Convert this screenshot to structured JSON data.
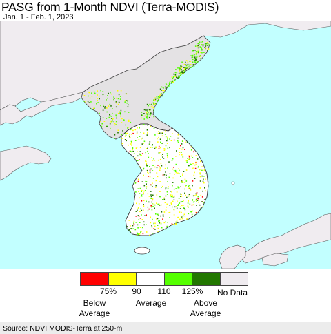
{
  "header": {
    "title": "PASG from 1-Month NDVI (Terra-MODIS)",
    "date_range": "Jan. 1 - Feb. 1, 2023"
  },
  "map": {
    "colors": {
      "sea": "#c2ffff",
      "land_outside": "#f0ecf0",
      "land_no_data": "#e4e2e4",
      "borders": "#444444"
    }
  },
  "legend": {
    "swatches": [
      {
        "label": "Below 75%",
        "color": "#ff0000"
      },
      {
        "label": "75-90%",
        "color": "#ffff00"
      },
      {
        "label": "90-110%",
        "color": "#ffffff"
      },
      {
        "label": "110-125%",
        "color": "#55ff00"
      },
      {
        "label": "Above 125%",
        "color": "#227700"
      },
      {
        "label": "No Data",
        "color": "#f0ecf0"
      }
    ],
    "ticks": [
      "75%",
      "90",
      "110",
      "125%"
    ],
    "below": {
      "line1": "Below",
      "line2": "Average"
    },
    "average": "Average",
    "above": {
      "line1": "Above",
      "line2": "Average"
    },
    "no_data": "No Data"
  },
  "footer": {
    "source": "Source: NDVI MODIS-Terra at 250-m"
  }
}
